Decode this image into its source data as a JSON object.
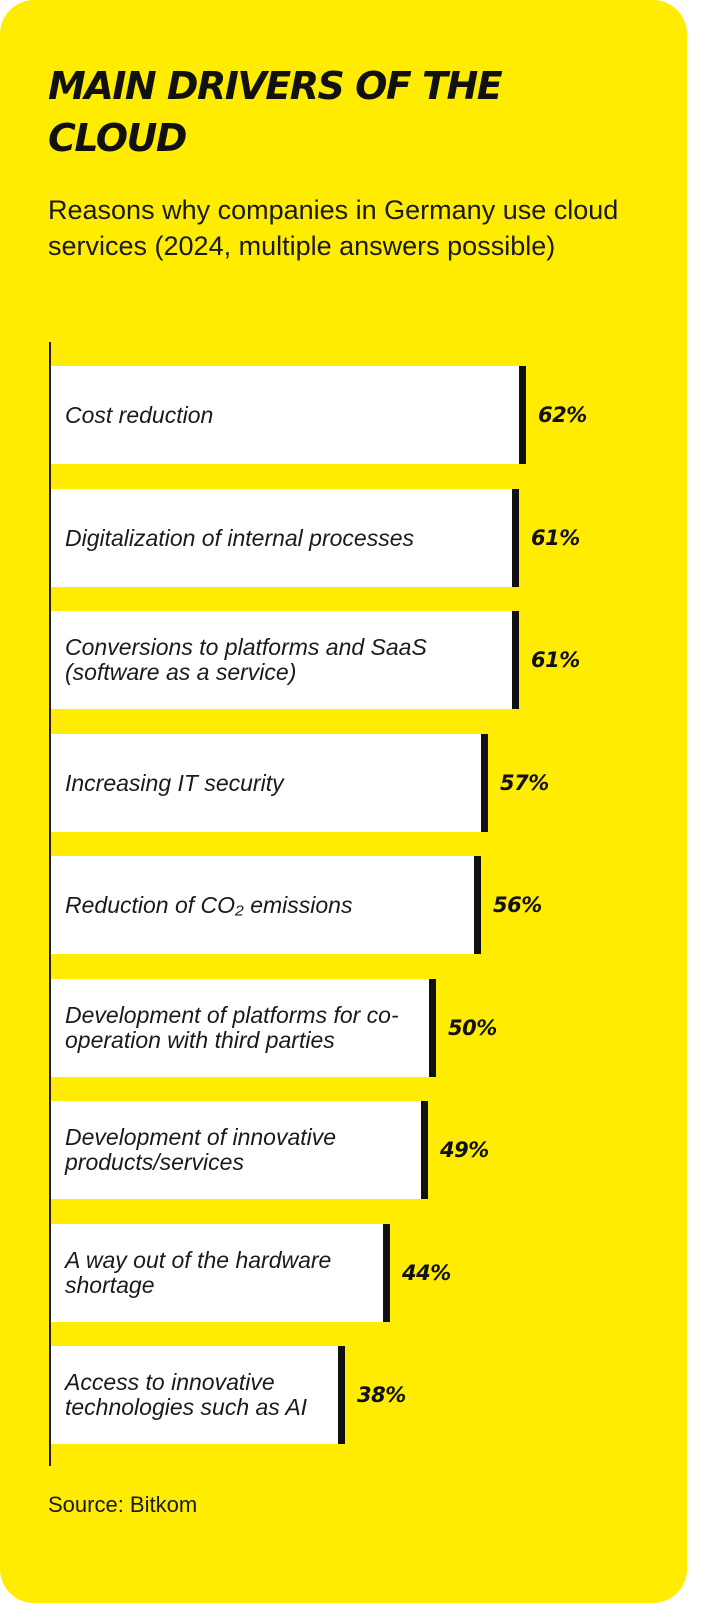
{
  "title": "MAIN DRIVERS OF THE CLOUD",
  "subtitle": "Reasons why companies in Germany use cloud services (2024, multiple answers possible)",
  "source": "Source: Bitkom",
  "colors": {
    "background": "#ffec00",
    "bar": "#ffffff",
    "bar_end": "#111111",
    "text": "#111111"
  },
  "chart_data": {
    "type": "bar",
    "orientation": "horizontal",
    "unit": "%",
    "xlim": [
      0,
      100
    ],
    "grid": false,
    "legend": "none",
    "categories": [
      "Cost reduction",
      "Digitalization of internal processes",
      "Conversions to platforms and SaaS (software as a service)",
      "Increasing IT security",
      "Reduction of CO₂ emissions",
      "Development of platforms for co-operation with third parties",
      "Development of innovative products/services",
      "A way out of the hardware shortage",
      "Access to innovative technologies such as AI"
    ],
    "values": [
      62,
      61,
      61,
      57,
      56,
      50,
      49,
      44,
      38
    ],
    "value_labels": [
      "62%",
      "61%",
      "61%",
      "57%",
      "56%",
      "50%",
      "49%",
      "44%",
      "38%"
    ]
  }
}
